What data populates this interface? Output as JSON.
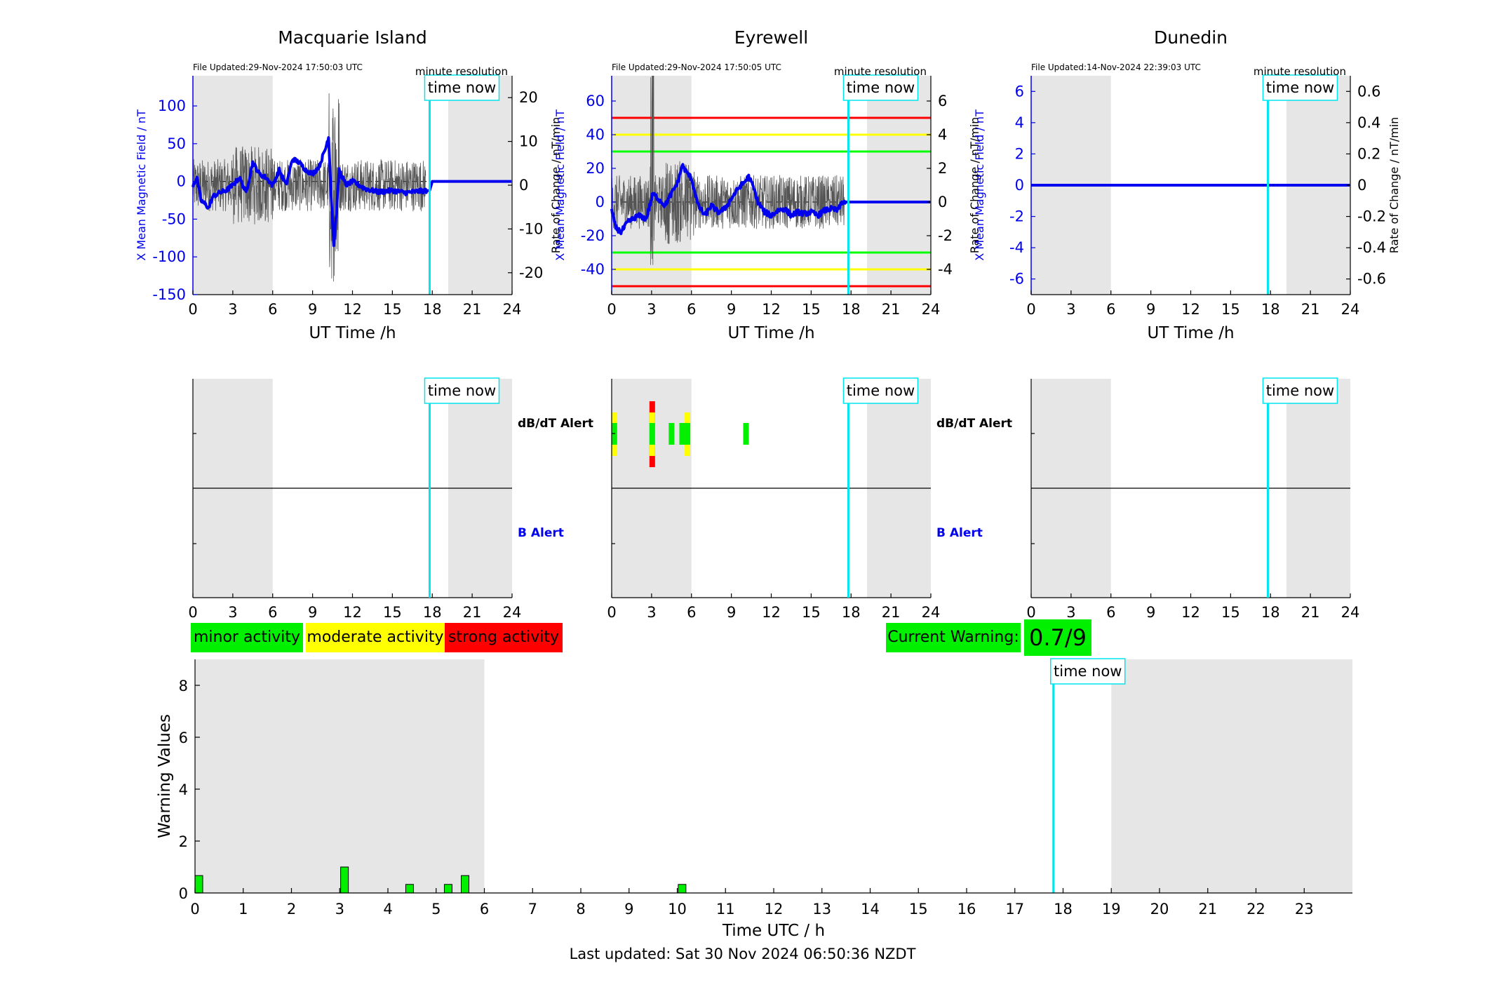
{
  "stations": [
    {
      "title": "Macquarie Island",
      "file_updated": "File Updated:29-Nov-2024 17:50:03 UTC",
      "resolution": "minute resolution",
      "ylabel_left": "X Mean Magnetic Field / nT",
      "ylabel_right": "Rate of Change / nT/min",
      "ylim_left": [
        -150,
        140
      ],
      "yticks_left": [
        "100",
        "50",
        "0",
        "-50",
        "-100",
        "-150"
      ],
      "ytick_values_left": [
        100,
        50,
        0,
        -50,
        -100,
        -150
      ],
      "ylim_right": [
        -25,
        25
      ],
      "yticks_right": [
        "20",
        "10",
        "0",
        "-10",
        "-20"
      ],
      "ytick_values_right": [
        20,
        10,
        0,
        -10,
        -20
      ],
      "thresholds": [],
      "alert_labels": [
        "dB/dT Alert",
        "B Alert"
      ],
      "alert_segments": []
    },
    {
      "title": "Eyrewell",
      "file_updated": "File Updated:29-Nov-2024 17:50:05 UTC",
      "resolution": "minute resolution",
      "ylabel_left": "X Mean Magnetic Field / nT",
      "ylabel_right": "Rate of Change / nT/min",
      "ylim_left": [
        -55,
        75
      ],
      "yticks_left": [
        "60",
        "40",
        "20",
        "0",
        "-20",
        "-40"
      ],
      "ytick_values_left": [
        60,
        40,
        20,
        0,
        -20,
        -40
      ],
      "ylim_right": [
        -5.5,
        7.5
      ],
      "yticks_right": [
        "6",
        "4",
        "2",
        "0",
        "-2",
        "-4"
      ],
      "ytick_values_right": [
        6,
        4,
        2,
        0,
        -2,
        -4
      ],
      "thresholds": [
        {
          "value": 50,
          "color": "#ff0000"
        },
        {
          "value": 40,
          "color": "#ffff00"
        },
        {
          "value": 30,
          "color": "#00ff00"
        },
        {
          "value": -30,
          "color": "#00ff00"
        },
        {
          "value": -40,
          "color": "#ffff00"
        },
        {
          "value": -50,
          "color": "#ff0000"
        }
      ],
      "alert_labels": [
        "dB/dT Alert",
        "B Alert"
      ],
      "alert_segments": [
        {
          "t": 0.2,
          "color": "#ffff00",
          "size": 2
        },
        {
          "t": 3.05,
          "color": "#ff0000",
          "size": 3
        },
        {
          "t": 4.5,
          "color": "#00ff00",
          "size": 1
        },
        {
          "t": 5.3,
          "color": "#00ff00",
          "size": 1
        },
        {
          "t": 5.7,
          "color": "#ffff00",
          "size": 2
        },
        {
          "t": 10.1,
          "color": "#00ff00",
          "size": 1
        }
      ]
    },
    {
      "title": "Dunedin",
      "file_updated": "File Updated:14-Nov-2024 22:39:03 UTC",
      "resolution": "minute resolution",
      "ylabel_left": "X Mean Magnetic Field / nT",
      "ylabel_right": "Rate of Change / nT/min",
      "ylim_left": [
        -7,
        7
      ],
      "yticks_left": [
        "6",
        "4",
        "2",
        "0",
        "-2",
        "-4",
        "-6"
      ],
      "ytick_values_left": [
        6,
        4,
        2,
        0,
        -2,
        -4,
        -6
      ],
      "ylim_right": [
        -0.7,
        0.7
      ],
      "yticks_right": [
        "0.6",
        "0.4",
        "0.2",
        "0",
        "-0.2",
        "-0.4",
        "-0.6"
      ],
      "ytick_values_right": [
        0.6,
        0.4,
        0.2,
        0,
        -0.2,
        -0.4,
        -0.6
      ],
      "thresholds": [],
      "alert_labels": [
        "dB/dT Alert",
        "B Alert"
      ],
      "alert_segments": []
    }
  ],
  "xlabel_top": "UT Time /h",
  "xticks_top": [
    "0",
    "3",
    "6",
    "9",
    "12",
    "15",
    "18",
    "21",
    "24"
  ],
  "time_now_label": "time now",
  "legend": {
    "minor": "minor activity",
    "moderate": "moderate activity",
    "strong": "strong activity"
  },
  "current_warning": {
    "label": "Current Warning:",
    "value": "0.7/9"
  },
  "chart_data": {
    "type": "bar",
    "xlabel": "Time UTC / h",
    "ylabel": "Warning Values",
    "xlim": [
      0,
      24
    ],
    "ylim": [
      0,
      9
    ],
    "xticks": [
      "0",
      "1",
      "2",
      "3",
      "4",
      "5",
      "6",
      "7",
      "8",
      "9",
      "10",
      "11",
      "12",
      "13",
      "14",
      "15",
      "16",
      "17",
      "18",
      "19",
      "20",
      "21",
      "22",
      "23"
    ],
    "yticks": [
      "0",
      "2",
      "4",
      "6",
      "8"
    ],
    "ytick_values": [
      0,
      2,
      4,
      6,
      8
    ],
    "time_now": 17.8,
    "bars": [
      {
        "x": 0.08,
        "value": 0.67
      },
      {
        "x": 3.1,
        "value": 1.0
      },
      {
        "x": 4.45,
        "value": 0.33
      },
      {
        "x": 5.25,
        "value": 0.33
      },
      {
        "x": 5.6,
        "value": 0.67
      },
      {
        "x": 10.1,
        "value": 0.33
      }
    ],
    "bar_color": "#00f000",
    "shaded_ranges": [
      [
        0,
        6
      ],
      [
        19,
        24
      ]
    ],
    "grid": false
  },
  "last_updated": "Last updated: Sat 30 Nov 2024 06:50:36 NZDT",
  "colors": {
    "field_line": "#0000ee",
    "rate_line": "#555555",
    "time_now": "#00e5ee",
    "night_shade": "#e6e6e6",
    "minor": "#00f000",
    "moderate": "#ffff00",
    "strong": "#ff0000"
  }
}
